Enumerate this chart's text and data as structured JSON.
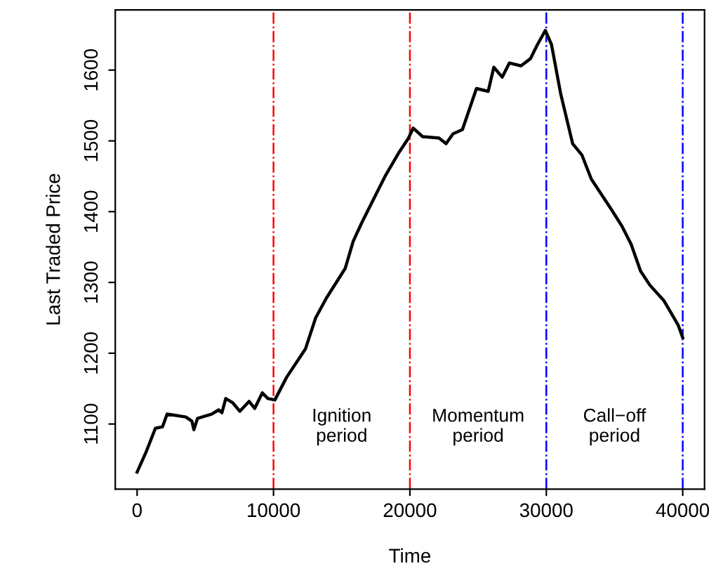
{
  "chart_data": {
    "type": "line",
    "xlabel": "Time",
    "ylabel": "Last Traded Price",
    "xlim": [
      -1600,
      41600
    ],
    "ylim": [
      1008,
      1685
    ],
    "xticks": [
      0,
      10000,
      20000,
      30000,
      40000
    ],
    "yticks": [
      1100,
      1200,
      1300,
      1400,
      1500,
      1600
    ],
    "grid": false,
    "legend": false,
    "marker": "none",
    "line_style": "solid",
    "series": [
      {
        "color": "#000000",
        "x": [
          0,
          650,
          1340,
          1860,
          2200,
          3570,
          4020,
          4160,
          4430,
          5460,
          5980,
          6220,
          6500,
          7010,
          7530,
          8210,
          8620,
          9180,
          9590,
          10100,
          10960,
          12340,
          13090,
          13880,
          15260,
          15840,
          16460,
          18180,
          19210,
          19900,
          20240,
          20930,
          22130,
          22650,
          23160,
          23850,
          24880,
          25740,
          26150,
          26770,
          27290,
          28140,
          28830,
          29350,
          29930,
          30380,
          31060,
          31930,
          32610,
          33300,
          34670,
          35530,
          36220,
          36910,
          37600,
          38630,
          39660,
          40000
        ],
        "values": [
          1032,
          1060,
          1094,
          1096,
          1114,
          1110,
          1104,
          1092,
          1108,
          1114,
          1120,
          1116,
          1136,
          1130,
          1118,
          1132,
          1122,
          1144,
          1136,
          1134,
          1166,
          1206,
          1250,
          1278,
          1320,
          1358,
          1384,
          1450,
          1484,
          1504,
          1518,
          1506,
          1504,
          1496,
          1510,
          1516,
          1574,
          1570,
          1604,
          1590,
          1610,
          1606,
          1616,
          1636,
          1656,
          1636,
          1566,
          1496,
          1480,
          1446,
          1406,
          1380,
          1354,
          1316,
          1296,
          1274,
          1240,
          1222
        ]
      }
    ],
    "ref_lines": [
      {
        "axis": "x",
        "value": 10000,
        "label": null,
        "color": "#ff0000",
        "line_style": "dashdot"
      },
      {
        "axis": "x",
        "value": 20000,
        "label": null,
        "color": "#ff0000",
        "line_style": "dashdot"
      },
      {
        "axis": "x",
        "value": 30000,
        "label": null,
        "color": "#0000ff",
        "line_style": "dashdot"
      },
      {
        "axis": "x",
        "value": 40000,
        "label": null,
        "color": "#0000ff",
        "line_style": "dashdot"
      }
    ],
    "annotations": [
      "Ignition\nperiod",
      "Momentum\nperiod",
      "Call−off\nperiod"
    ]
  }
}
